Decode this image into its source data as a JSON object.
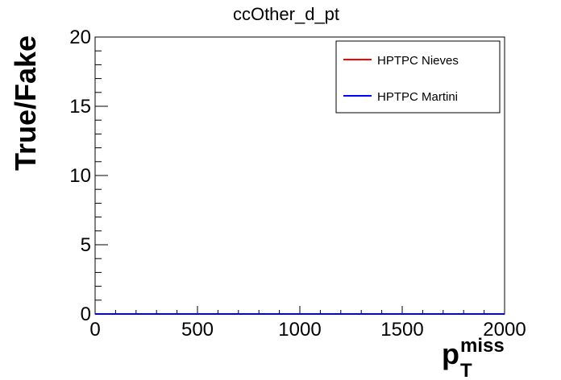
{
  "chart_data": {
    "type": "line",
    "title": "ccOther_d_pt",
    "ylabel": "True/Fake",
    "xlabel": {
      "main": "p",
      "sub": "T",
      "sup": "miss"
    },
    "xlim": [
      0,
      2000
    ],
    "ylim": [
      0,
      20
    ],
    "x_ticks": [
      0,
      500,
      1000,
      1500,
      2000
    ],
    "x_tick_labels": [
      "0",
      "500",
      "1000",
      "1500",
      "2000"
    ],
    "y_ticks": [
      0,
      5,
      10,
      15,
      20
    ],
    "y_tick_labels": [
      "0",
      "5",
      "10",
      "15",
      "20"
    ],
    "grid": false,
    "legend_position": "top-right",
    "series": [
      {
        "name": "HPTPC Nieves",
        "color": "#ff0000",
        "x": [
          0,
          2000
        ],
        "y": [
          0,
          0
        ]
      },
      {
        "name": "HPTPC Martini",
        "color": "#0000ff",
        "x": [
          0,
          2000
        ],
        "y": [
          0,
          0
        ]
      }
    ]
  }
}
